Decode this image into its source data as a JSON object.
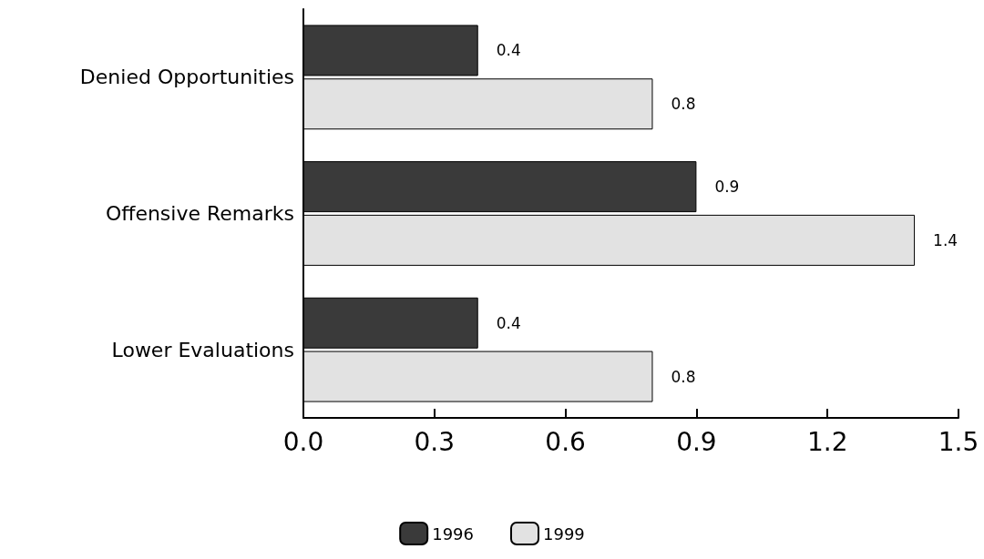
{
  "chart_data": {
    "type": "bar",
    "orientation": "horizontal",
    "categories": [
      "Denied Opportunities",
      "Offensive Remarks",
      "Lower Evaluations"
    ],
    "series": [
      {
        "name": "1996",
        "color": "#3a3a3a",
        "values": [
          0.4,
          0.9,
          0.4
        ]
      },
      {
        "name": "1999",
        "color": "#e2e2e2",
        "values": [
          0.8,
          1.4,
          0.8
        ]
      }
    ],
    "xlim": [
      0,
      1.5
    ],
    "xticks": [
      {
        "value": 0,
        "label": "0.0"
      },
      {
        "value": 0.3,
        "label": "0.3"
      },
      {
        "value": 0.6,
        "label": "0.6"
      },
      {
        "value": 0.9,
        "label": "0.9"
      },
      {
        "value": 1.2,
        "label": "1.2"
      },
      {
        "value": 1.5,
        "label": "1.5"
      }
    ],
    "data_labels": true,
    "legend": "bottom",
    "grid": false
  }
}
